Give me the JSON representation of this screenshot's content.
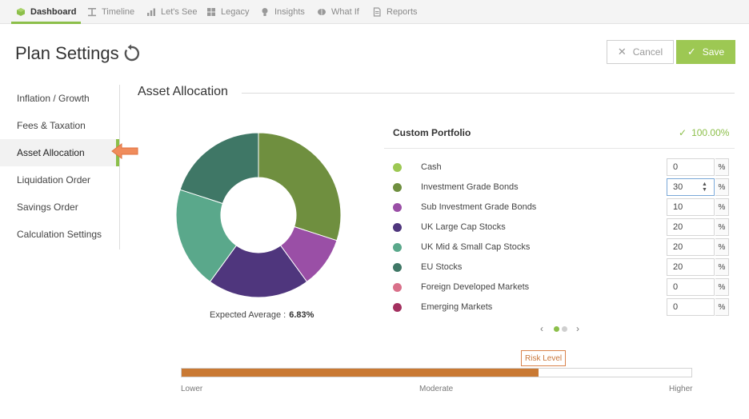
{
  "nav": {
    "tabs": [
      {
        "label": "Dashboard",
        "icon": "cube-icon"
      },
      {
        "label": "Timeline",
        "icon": "timeline-icon"
      },
      {
        "label": "Let's See",
        "icon": "bar-chart-icon"
      },
      {
        "label": "Legacy",
        "icon": "grid-icon"
      },
      {
        "label": "Insights",
        "icon": "lightbulb-icon"
      },
      {
        "label": "What If",
        "icon": "brain-icon"
      },
      {
        "label": "Reports",
        "icon": "document-icon"
      }
    ],
    "active": "Dashboard"
  },
  "header": {
    "title": "Plan Settings",
    "cancel_label": "Cancel",
    "save_label": "Save"
  },
  "sidebar": {
    "items": [
      {
        "label": "Inflation / Growth"
      },
      {
        "label": "Fees & Taxation"
      },
      {
        "label": "Asset Allocation"
      },
      {
        "label": "Liquidation Order"
      },
      {
        "label": "Savings Order"
      },
      {
        "label": "Calculation Settings"
      }
    ],
    "active": "Asset Allocation"
  },
  "section": {
    "title": "Asset Allocation"
  },
  "chart": {
    "expected_label": "Expected Average :",
    "expected_value": "6.83%"
  },
  "portfolio": {
    "title": "Custom Portfolio",
    "total": "100.00%",
    "assets": [
      {
        "name": "Cash",
        "value": "0",
        "unit": "%",
        "color": "#9dc853"
      },
      {
        "name": "Investment Grade Bonds",
        "value": "30",
        "unit": "%",
        "color": "#6f8f3f"
      },
      {
        "name": "Sub Investment Grade Bonds",
        "value": "10",
        "unit": "%",
        "color": "#9a4fa6"
      },
      {
        "name": "UK Large Cap Stocks",
        "value": "20",
        "unit": "%",
        "color": "#4f367d"
      },
      {
        "name": "UK Mid & Small Cap Stocks",
        "value": "20",
        "unit": "%",
        "color": "#5aa88b"
      },
      {
        "name": "EU Stocks",
        "value": "20",
        "unit": "%",
        "color": "#3f7766"
      },
      {
        "name": "Foreign Developed Markets",
        "value": "0",
        "unit": "%",
        "color": "#d9708a"
      },
      {
        "name": "Emerging Markets",
        "value": "0",
        "unit": "%",
        "color": "#a3305f"
      }
    ]
  },
  "pager": {
    "pages": 2,
    "current": 1
  },
  "risk": {
    "label": "Risk Level",
    "level_fraction": 0.7,
    "ticks": [
      "Lower",
      "Moderate",
      "Higher"
    ],
    "fill_color": "#c97933"
  }
}
